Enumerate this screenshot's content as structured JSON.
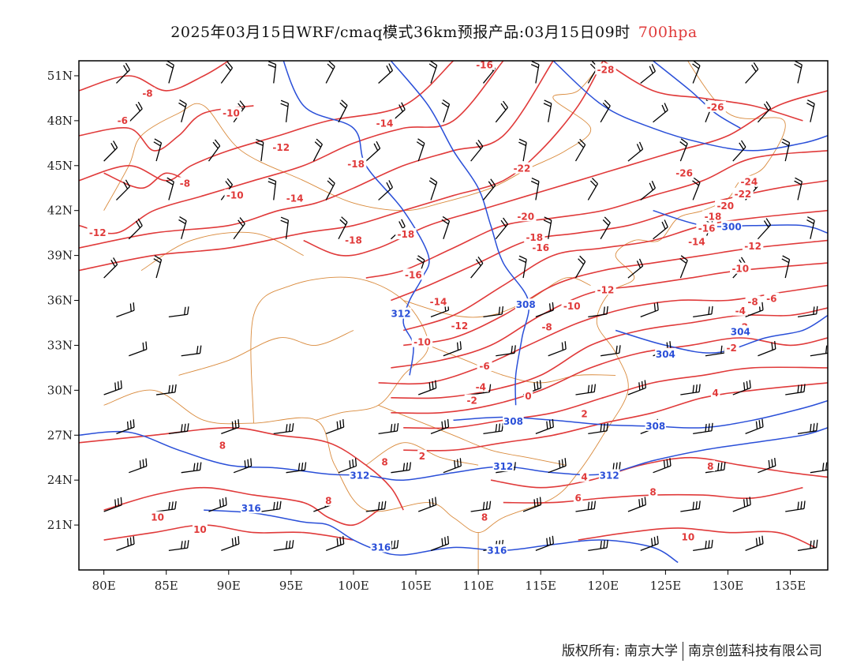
{
  "title": {
    "main": "2025年03月15日WRF/cmaq模式36km预报产品:03月15日09时",
    "level": "700hpa",
    "level_color": "#e03a3a"
  },
  "map": {
    "lon_range": [
      78,
      138
    ],
    "lat_range": [
      18,
      52
    ],
    "frame_color": "#000000",
    "temperature_contour_color": "#e03a3a",
    "height_contour_color": "#2a4fd8",
    "boundary_color": "#d98a3c",
    "wind_barb_color": "#000000"
  },
  "x_ticks": [
    "80E",
    "85E",
    "90E",
    "95E",
    "100E",
    "105E",
    "110E",
    "115E",
    "120E",
    "125E",
    "130E",
    "135E"
  ],
  "x_tick_values": [
    80,
    85,
    90,
    95,
    100,
    105,
    110,
    115,
    120,
    125,
    130,
    135
  ],
  "y_ticks": [
    "51N",
    "48N",
    "45N",
    "42N",
    "39N",
    "36N",
    "33N",
    "30N",
    "27N",
    "24N",
    "21N"
  ],
  "y_tick_values": [
    51,
    48,
    45,
    42,
    39,
    36,
    33,
    30,
    27,
    24,
    21
  ],
  "temperature_labels": [
    {
      "text": "-8",
      "lon": 83.5,
      "lat": 49.8
    },
    {
      "text": "-6",
      "lon": 81.5,
      "lat": 48.0
    },
    {
      "text": "-10",
      "lon": 90.2,
      "lat": 48.5
    },
    {
      "text": "-14",
      "lon": 102.5,
      "lat": 47.8
    },
    {
      "text": "-16",
      "lon": 110.5,
      "lat": 51.7
    },
    {
      "text": "-28",
      "lon": 120.2,
      "lat": 51.4
    },
    {
      "text": "-26",
      "lon": 129.0,
      "lat": 48.9
    },
    {
      "text": "-12",
      "lon": 94.2,
      "lat": 46.2
    },
    {
      "text": "-8",
      "lon": 86.5,
      "lat": 43.8
    },
    {
      "text": "-10",
      "lon": 90.5,
      "lat": 43.0
    },
    {
      "text": "-14",
      "lon": 95.3,
      "lat": 42.8
    },
    {
      "text": "-18",
      "lon": 100.2,
      "lat": 45.1
    },
    {
      "text": "-22",
      "lon": 113.5,
      "lat": 44.8
    },
    {
      "text": "-26",
      "lon": 126.5,
      "lat": 44.5
    },
    {
      "text": "-24",
      "lon": 131.7,
      "lat": 43.9
    },
    {
      "text": "-22",
      "lon": 131.2,
      "lat": 43.1
    },
    {
      "text": "-20",
      "lon": 129.8,
      "lat": 42.3
    },
    {
      "text": "-18",
      "lon": 128.8,
      "lat": 41.6
    },
    {
      "text": "-16",
      "lon": 128.3,
      "lat": 40.8
    },
    {
      "text": "-14",
      "lon": 127.5,
      "lat": 39.9
    },
    {
      "text": "-12",
      "lon": 132.0,
      "lat": 39.6
    },
    {
      "text": "-10",
      "lon": 131.0,
      "lat": 38.1
    },
    {
      "text": "-20",
      "lon": 113.8,
      "lat": 41.6
    },
    {
      "text": "-18",
      "lon": 114.5,
      "lat": 40.2
    },
    {
      "text": "-16",
      "lon": 115.0,
      "lat": 39.5
    },
    {
      "text": "-12",
      "lon": 79.5,
      "lat": 40.5
    },
    {
      "text": "-18",
      "lon": 100.0,
      "lat": 40.0
    },
    {
      "text": "-18",
      "lon": 104.2,
      "lat": 40.4
    },
    {
      "text": "-16",
      "lon": 104.8,
      "lat": 37.7
    },
    {
      "text": "-14",
      "lon": 106.8,
      "lat": 35.9
    },
    {
      "text": "-12",
      "lon": 108.5,
      "lat": 34.3
    },
    {
      "text": "-10",
      "lon": 105.5,
      "lat": 33.2
    },
    {
      "text": "-12",
      "lon": 120.2,
      "lat": 36.7
    },
    {
      "text": "-10",
      "lon": 117.5,
      "lat": 35.6
    },
    {
      "text": "-8",
      "lon": 115.5,
      "lat": 34.2
    },
    {
      "text": "-8",
      "lon": 132.0,
      "lat": 35.9
    },
    {
      "text": "-6",
      "lon": 133.5,
      "lat": 36.1
    },
    {
      "text": "-4",
      "lon": 131.0,
      "lat": 35.3
    },
    {
      "text": "-2",
      "lon": 131.2,
      "lat": 34.2
    },
    {
      "text": "-2",
      "lon": 130.3,
      "lat": 32.8
    },
    {
      "text": "-6",
      "lon": 110.5,
      "lat": 31.6
    },
    {
      "text": "-4",
      "lon": 110.2,
      "lat": 30.2
    },
    {
      "text": "-2",
      "lon": 109.5,
      "lat": 29.3
    },
    {
      "text": "0",
      "lon": 114.0,
      "lat": 29.6
    },
    {
      "text": "2",
      "lon": 118.5,
      "lat": 28.4
    },
    {
      "text": "4",
      "lon": 129.0,
      "lat": 29.8
    },
    {
      "text": "2",
      "lon": 105.5,
      "lat": 25.6
    },
    {
      "text": "8",
      "lon": 102.5,
      "lat": 25.2
    },
    {
      "text": "4",
      "lon": 118.5,
      "lat": 24.2
    },
    {
      "text": "6",
      "lon": 118.0,
      "lat": 22.8
    },
    {
      "text": "8",
      "lon": 110.5,
      "lat": 21.5
    },
    {
      "text": "8",
      "lon": 128.6,
      "lat": 24.9
    },
    {
      "text": "8",
      "lon": 124.0,
      "lat": 23.2
    },
    {
      "text": "8",
      "lon": 89.5,
      "lat": 26.3
    },
    {
      "text": "8",
      "lon": 98.0,
      "lat": 22.6
    },
    {
      "text": "10",
      "lon": 84.3,
      "lat": 21.5
    },
    {
      "text": "10",
      "lon": 87.7,
      "lat": 20.7
    },
    {
      "text": "10",
      "lon": 126.8,
      "lat": 20.2
    }
  ],
  "height_labels": [
    {
      "text": "300",
      "lon": 130.3,
      "lat": 40.9
    },
    {
      "text": "304",
      "lon": 131.0,
      "lat": 33.9
    },
    {
      "text": "304",
      "lon": 125.0,
      "lat": 32.4
    },
    {
      "text": "312",
      "lon": 103.8,
      "lat": 35.1
    },
    {
      "text": "308",
      "lon": 113.8,
      "lat": 35.7
    },
    {
      "text": "308",
      "lon": 124.2,
      "lat": 27.6
    },
    {
      "text": "308",
      "lon": 112.8,
      "lat": 27.9
    },
    {
      "text": "312",
      "lon": 100.5,
      "lat": 24.3
    },
    {
      "text": "312",
      "lon": 112.0,
      "lat": 24.9
    },
    {
      "text": "312",
      "lon": 120.5,
      "lat": 24.3
    },
    {
      "text": "316",
      "lon": 91.8,
      "lat": 22.1
    },
    {
      "text": "316",
      "lon": 102.2,
      "lat": 19.5
    },
    {
      "text": "316",
      "lon": 111.5,
      "lat": 19.3
    }
  ],
  "footer": {
    "left": "版权所有: 南京大学",
    "right": "南京创蓝科技有限公司"
  }
}
